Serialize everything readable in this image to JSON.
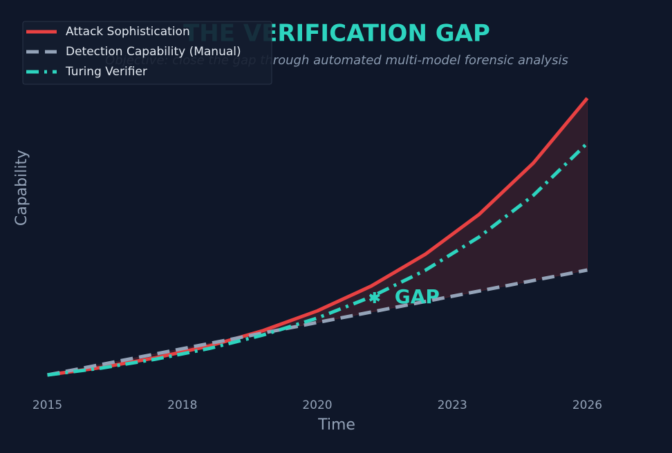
{
  "chart_data": {
    "type": "line",
    "title": "THE VERIFICATION GAP",
    "subtitle": "Objective: close the gap through automated multi-model forensic analysis",
    "x_label": "Time",
    "y_label": "Capability",
    "x": [
      0,
      1,
      2,
      3,
      4,
      5,
      6,
      7,
      8,
      9,
      10
    ],
    "series": [
      {
        "name": "Attack Sophistication",
        "color": "#e84142",
        "style": "solid",
        "values": [
          1,
          1.27,
          1.62,
          2.05,
          2.61,
          3.32,
          4.22,
          5.37,
          6.82,
          8.67,
          11.02
        ]
      },
      {
        "name": "Detection Capability (Manual)",
        "color": "#94a3b8",
        "style": "dashed",
        "values": [
          1,
          1.38,
          1.76,
          2.14,
          2.52,
          2.9,
          3.28,
          3.66,
          4.04,
          4.42,
          4.8
        ]
      },
      {
        "name": "Turing Verifier",
        "color": "#2dd4bf",
        "style": "dashdot",
        "values": [
          1,
          1.25,
          1.57,
          1.96,
          2.45,
          3.06,
          3.83,
          4.79,
          6.0,
          7.5,
          9.39
        ]
      }
    ],
    "fill_between": {
      "series": [
        0,
        1
      ],
      "color": "#e84142"
    },
    "annotation": {
      "text": "GAP",
      "x": 6.06,
      "y": 3.8,
      "color": "#2dd4bf"
    },
    "xlim": [
      -0.5,
      10.5
    ],
    "xticks": [
      {
        "value": 0,
        "label": "2015"
      },
      {
        "value": 2.5,
        "label": "2018"
      },
      {
        "value": 5,
        "label": "2020"
      },
      {
        "value": 7.5,
        "label": "2023"
      },
      {
        "value": 10,
        "label": "2026"
      }
    ],
    "ylim": [
      0.5,
      11.5
    ],
    "legend": "upper-left"
  }
}
